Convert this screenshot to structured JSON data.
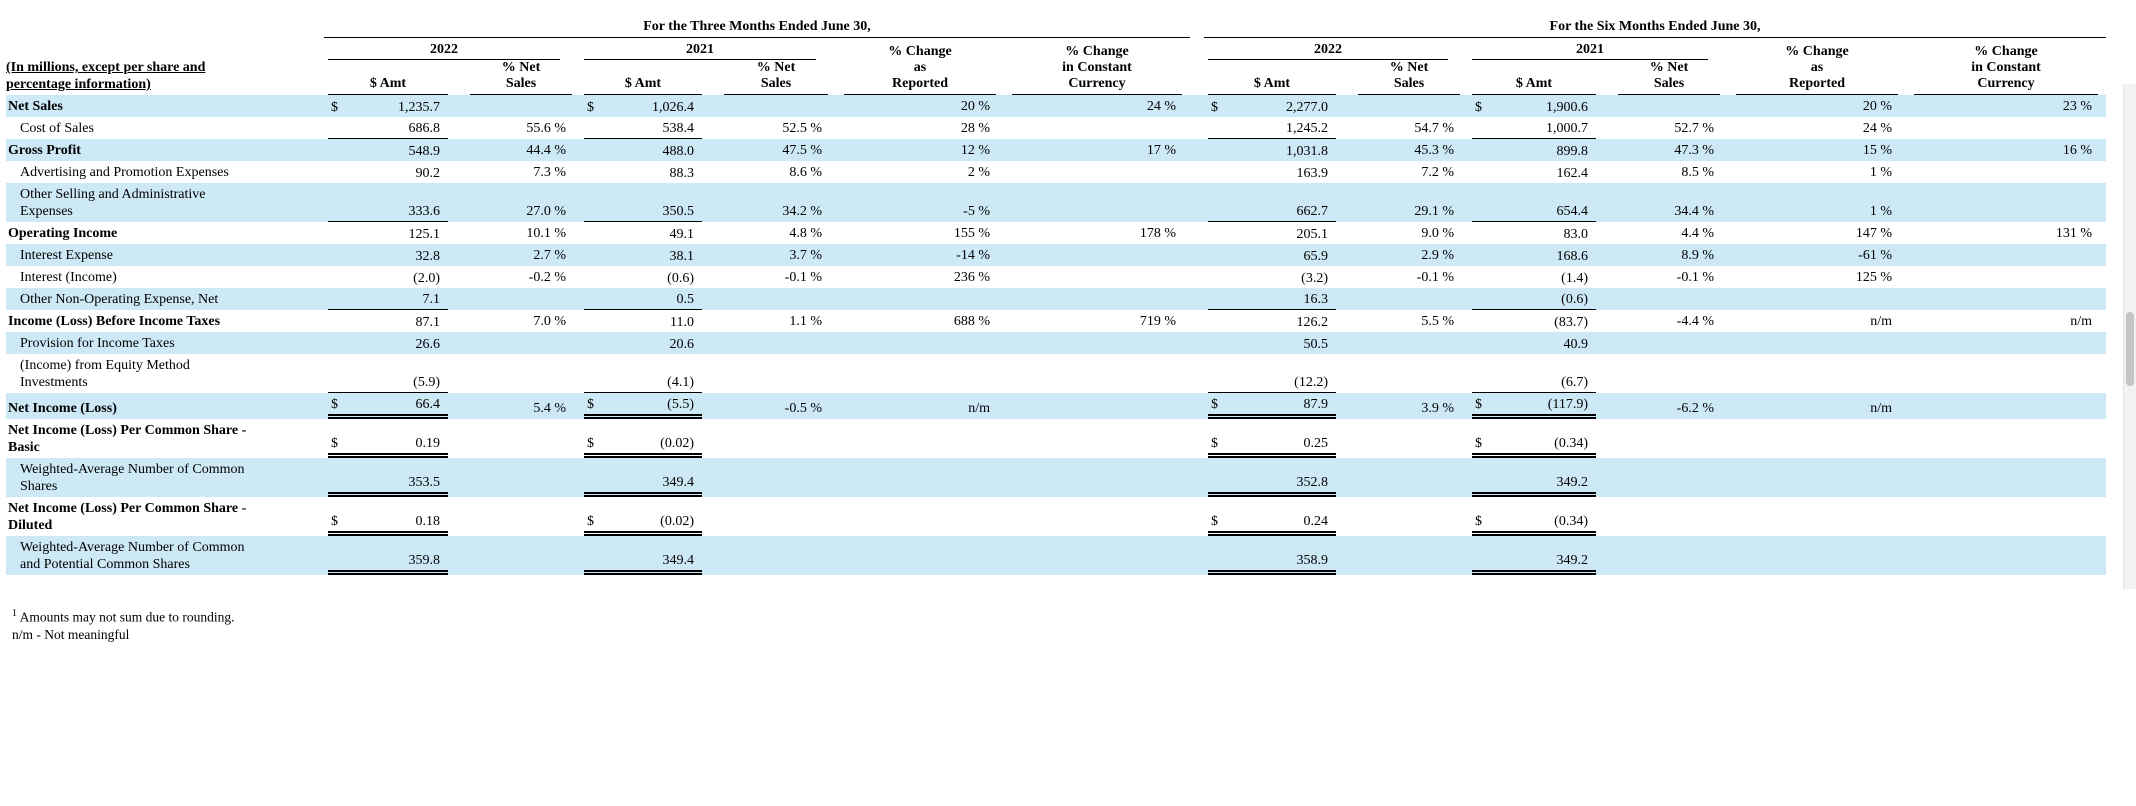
{
  "header": {
    "three_months_title": "For the Three Months Ended June 30,",
    "six_months_title": "For the Six Months Ended June 30,",
    "year_left": "2022",
    "year_right": "2021",
    "amt_label": "$ Amt",
    "pct_label": [
      "% Net",
      "Sales"
    ],
    "chg_label": [
      "% Change",
      "as",
      "Reported"
    ],
    "cc_label": [
      "% Change",
      "in Constant",
      "Currency"
    ],
    "row_header": [
      "(In millions, except per share and",
      "percentage information)"
    ]
  },
  "colors": {
    "row_highlight": "#cde9f6"
  },
  "rows": [
    {
      "label": [
        "Net Sales"
      ],
      "bold": true,
      "indent": false,
      "shaded": true,
      "cells": [
        {
          "cur": "$",
          "val": "1,235.7"
        },
        {},
        {
          "cur": "$",
          "val": "1,026.4"
        },
        {},
        {
          "val": "20 %"
        },
        {
          "val": "24 %"
        },
        {
          "cur": "$",
          "val": "2,277.0"
        },
        {},
        {
          "cur": "$",
          "val": "1,900.6"
        },
        {},
        {
          "val": "20 %"
        },
        {
          "val": "23 %"
        }
      ]
    },
    {
      "label": [
        "Cost of Sales"
      ],
      "bold": false,
      "indent": true,
      "shaded": false,
      "cells": [
        {
          "val": "686.8",
          "u": 1
        },
        {
          "val": "55.6 %"
        },
        {
          "val": "538.4",
          "u": 1
        },
        {
          "val": "52.5 %"
        },
        {
          "val": "28 %"
        },
        {},
        {
          "val": "1,245.2",
          "u": 1
        },
        {
          "val": "54.7 %"
        },
        {
          "val": "1,000.7",
          "u": 1
        },
        {
          "val": "52.7 %"
        },
        {
          "val": "24 %"
        },
        {}
      ]
    },
    {
      "label": [
        "Gross Profit"
      ],
      "bold": true,
      "indent": false,
      "shaded": true,
      "cells": [
        {
          "val": "548.9"
        },
        {
          "val": "44.4 %"
        },
        {
          "val": "488.0"
        },
        {
          "val": "47.5 %"
        },
        {
          "val": "12 %"
        },
        {
          "val": "17 %"
        },
        {
          "val": "1,031.8"
        },
        {
          "val": "45.3 %"
        },
        {
          "val": "899.8"
        },
        {
          "val": "47.3 %"
        },
        {
          "val": "15 %"
        },
        {
          "val": "16 %"
        }
      ]
    },
    {
      "label": [
        "Advertising and Promotion Expenses"
      ],
      "bold": false,
      "indent": true,
      "shaded": false,
      "cells": [
        {
          "val": "90.2"
        },
        {
          "val": "7.3 %"
        },
        {
          "val": "88.3"
        },
        {
          "val": "8.6 %"
        },
        {
          "val": "2 %"
        },
        {},
        {
          "val": "163.9"
        },
        {
          "val": "7.2 %"
        },
        {
          "val": "162.4"
        },
        {
          "val": "8.5 %"
        },
        {
          "val": "1 %"
        },
        {}
      ]
    },
    {
      "label": [
        "Other Selling and Administrative",
        "Expenses"
      ],
      "bold": false,
      "indent": true,
      "shaded": true,
      "cells": [
        {
          "val": "333.6",
          "u": 1
        },
        {
          "val": "27.0 %"
        },
        {
          "val": "350.5",
          "u": 1
        },
        {
          "val": "34.2 %"
        },
        {
          "val": "-5 %"
        },
        {},
        {
          "val": "662.7",
          "u": 1
        },
        {
          "val": "29.1 %"
        },
        {
          "val": "654.4",
          "u": 1
        },
        {
          "val": "34.4 %"
        },
        {
          "val": "1 %"
        },
        {}
      ]
    },
    {
      "label": [
        "Operating Income"
      ],
      "bold": true,
      "indent": false,
      "shaded": false,
      "cells": [
        {
          "val": "125.1"
        },
        {
          "val": "10.1 %"
        },
        {
          "val": "49.1"
        },
        {
          "val": "4.8 %"
        },
        {
          "val": "155 %"
        },
        {
          "val": "178 %"
        },
        {
          "val": "205.1"
        },
        {
          "val": "9.0 %"
        },
        {
          "val": "83.0"
        },
        {
          "val": "4.4 %"
        },
        {
          "val": "147 %"
        },
        {
          "val": "131 %"
        }
      ]
    },
    {
      "label": [
        "Interest Expense"
      ],
      "bold": false,
      "indent": true,
      "shaded": true,
      "cells": [
        {
          "val": "32.8"
        },
        {
          "val": "2.7 %"
        },
        {
          "val": "38.1"
        },
        {
          "val": "3.7 %"
        },
        {
          "val": "-14 %"
        },
        {},
        {
          "val": "65.9"
        },
        {
          "val": "2.9 %"
        },
        {
          "val": "168.6"
        },
        {
          "val": "8.9 %"
        },
        {
          "val": "-61 %"
        },
        {}
      ]
    },
    {
      "label": [
        "Interest (Income)"
      ],
      "bold": false,
      "indent": true,
      "shaded": false,
      "cells": [
        {
          "val": "(2.0)"
        },
        {
          "val": "-0.2 %"
        },
        {
          "val": "(0.6)"
        },
        {
          "val": "-0.1 %"
        },
        {
          "val": "236 %"
        },
        {},
        {
          "val": "(3.2)"
        },
        {
          "val": "-0.1 %"
        },
        {
          "val": "(1.4)"
        },
        {
          "val": "-0.1 %"
        },
        {
          "val": "125 %"
        },
        {}
      ]
    },
    {
      "label": [
        "Other Non-Operating Expense, Net"
      ],
      "bold": false,
      "indent": true,
      "shaded": true,
      "cells": [
        {
          "val": "7.1",
          "u": 1
        },
        {},
        {
          "val": "0.5",
          "u": 1
        },
        {},
        {},
        {},
        {
          "val": "16.3",
          "u": 1
        },
        {},
        {
          "val": "(0.6)",
          "u": 1
        },
        {},
        {},
        {}
      ]
    },
    {
      "label": [
        "Income (Loss) Before Income Taxes"
      ],
      "bold": true,
      "indent": false,
      "shaded": false,
      "cells": [
        {
          "val": "87.1"
        },
        {
          "val": "7.0 %"
        },
        {
          "val": "11.0"
        },
        {
          "val": "1.1 %"
        },
        {
          "val": "688 %"
        },
        {
          "val": "719 %"
        },
        {
          "val": "126.2"
        },
        {
          "val": "5.5 %"
        },
        {
          "val": "(83.7)"
        },
        {
          "val": "-4.4 %"
        },
        {
          "val": "n/m"
        },
        {
          "val": "n/m"
        }
      ]
    },
    {
      "label": [
        "Provision for Income Taxes"
      ],
      "bold": false,
      "indent": true,
      "shaded": true,
      "cells": [
        {
          "val": "26.6"
        },
        {},
        {
          "val": "20.6"
        },
        {},
        {},
        {},
        {
          "val": "50.5"
        },
        {},
        {
          "val": "40.9"
        },
        {},
        {},
        {}
      ]
    },
    {
      "label": [
        "(Income) from Equity Method",
        "Investments"
      ],
      "bold": false,
      "indent": true,
      "shaded": false,
      "cells": [
        {
          "val": "(5.9)",
          "u": 1
        },
        {},
        {
          "val": "(4.1)",
          "u": 1
        },
        {},
        {},
        {},
        {
          "val": "(12.2)",
          "u": 1
        },
        {},
        {
          "val": "(6.7)",
          "u": 1
        },
        {},
        {},
        {}
      ]
    },
    {
      "label": [
        "Net Income (Loss)"
      ],
      "bold": true,
      "indent": false,
      "shaded": true,
      "cells": [
        {
          "cur": "$",
          "val": "66.4",
          "u": 2
        },
        {
          "val": "5.4 %"
        },
        {
          "cur": "$",
          "val": "(5.5)",
          "u": 2
        },
        {
          "val": "-0.5 %"
        },
        {
          "val": "n/m"
        },
        {},
        {
          "cur": "$",
          "val": "87.9",
          "u": 2
        },
        {
          "val": "3.9 %"
        },
        {
          "cur": "$",
          "val": "(117.9)",
          "u": 2
        },
        {
          "val": "-6.2 %"
        },
        {
          "val": "n/m"
        },
        {}
      ]
    },
    {
      "label": [
        "Net Income (Loss) Per Common Share -",
        "Basic"
      ],
      "bold": true,
      "indent": false,
      "shaded": false,
      "cells": [
        {
          "cur": "$",
          "val": "0.19",
          "u": 2
        },
        {},
        {
          "cur": "$",
          "val": "(0.02)",
          "u": 2
        },
        {},
        {},
        {},
        {
          "cur": "$",
          "val": "0.25",
          "u": 2
        },
        {},
        {
          "cur": "$",
          "val": "(0.34)",
          "u": 2
        },
        {},
        {},
        {}
      ]
    },
    {
      "label": [
        "Weighted-Average Number of Common",
        "Shares"
      ],
      "bold": false,
      "indent": true,
      "shaded": true,
      "cells": [
        {
          "val": "353.5",
          "u": 2
        },
        {},
        {
          "val": "349.4",
          "u": 2
        },
        {},
        {},
        {},
        {
          "val": "352.8",
          "u": 2
        },
        {},
        {
          "val": "349.2",
          "u": 2
        },
        {},
        {},
        {}
      ]
    },
    {
      "label": [
        "Net Income (Loss) Per Common Share -",
        "Diluted"
      ],
      "bold": true,
      "indent": false,
      "shaded": false,
      "cells": [
        {
          "cur": "$",
          "val": "0.18",
          "u": 2
        },
        {},
        {
          "cur": "$",
          "val": "(0.02)",
          "u": 2
        },
        {},
        {},
        {},
        {
          "cur": "$",
          "val": "0.24",
          "u": 2
        },
        {},
        {
          "cur": "$",
          "val": "(0.34)",
          "u": 2
        },
        {},
        {},
        {}
      ]
    },
    {
      "label": [
        "Weighted-Average Number of Common",
        "and Potential Common Shares"
      ],
      "bold": false,
      "indent": true,
      "shaded": true,
      "cells": [
        {
          "val": "359.8",
          "u": 2
        },
        {},
        {
          "val": "349.4",
          "u": 2
        },
        {},
        {},
        {},
        {
          "val": "358.9",
          "u": 2
        },
        {},
        {
          "val": "349.2",
          "u": 2
        },
        {},
        {},
        {}
      ]
    }
  ],
  "footnotes": {
    "sup": "1",
    "note1": "Amounts may not sum due to rounding.",
    "note2": "n/m - Not meaningful"
  }
}
